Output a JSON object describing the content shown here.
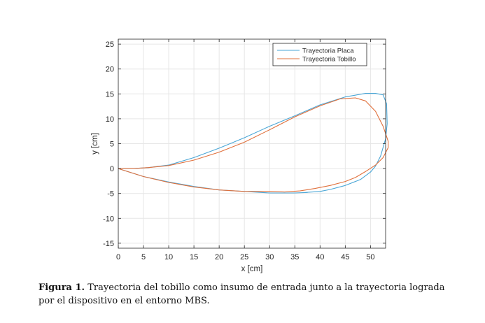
{
  "chart_data": {
    "type": "line",
    "xlabel": "x [cm]",
    "ylabel": "y [cm]",
    "xlim": [
      0,
      53
    ],
    "ylim": [
      -16,
      26
    ],
    "xticks": [
      "0",
      "5",
      "10",
      "15",
      "20",
      "25",
      "30",
      "35",
      "40",
      "45",
      "50"
    ],
    "yticks": [
      "25",
      "20",
      "15",
      "10",
      "5",
      "0",
      "-5",
      "-10",
      "-15"
    ],
    "xtick_values": [
      0,
      5,
      10,
      15,
      20,
      25,
      30,
      35,
      40,
      45,
      50
    ],
    "ytick_values": [
      25,
      20,
      15,
      10,
      5,
      0,
      -5,
      -10,
      -15
    ],
    "grid": true,
    "legend_position": "top-right",
    "series": [
      {
        "name": "Trayectoria Placa",
        "color": "#4aa6d6",
        "x": [
          0,
          3,
          6,
          10,
          15,
          20,
          25,
          30,
          35,
          40,
          45,
          49,
          51,
          52.5,
          53.2,
          53.3,
          53,
          52,
          51,
          50,
          48,
          45,
          42,
          40,
          37,
          37.5,
          35,
          30,
          25,
          20,
          15,
          10,
          5,
          0
        ],
        "y": [
          0,
          0,
          0.2,
          0.7,
          2.2,
          4.1,
          6.2,
          8.5,
          10.6,
          12.8,
          14.4,
          15.1,
          15.1,
          14.8,
          13,
          9,
          6,
          2.5,
          0.5,
          -0.7,
          -2.2,
          -3.4,
          -4.2,
          -4.6,
          -4.8,
          -4.8,
          -4.9,
          -4.9,
          -4.6,
          -4.3,
          -3.6,
          -2.7,
          -1.6,
          0
        ]
      },
      {
        "name": "Trayectoria Tobillo",
        "color": "#e0703c",
        "x": [
          0,
          3,
          6,
          10,
          15,
          20,
          25,
          30,
          35,
          40,
          44,
          47,
          49,
          51,
          52.5,
          53.5,
          53.5,
          52.5,
          51,
          49,
          47,
          45,
          42,
          39,
          36,
          33,
          30,
          25,
          20,
          15,
          10,
          5,
          0
        ],
        "y": [
          0,
          0,
          0.2,
          0.6,
          1.7,
          3.3,
          5.3,
          7.8,
          10.4,
          12.6,
          14,
          14.2,
          13.6,
          11.5,
          8.5,
          5.5,
          4.2,
          2.2,
          0.7,
          -0.6,
          -1.8,
          -2.6,
          -3.4,
          -4,
          -4.5,
          -4.7,
          -4.6,
          -4.6,
          -4.3,
          -3.7,
          -2.8,
          -1.6,
          0
        ]
      }
    ]
  },
  "caption": {
    "label": "Figura 1.",
    "text": " Trayectoria del tobillo como insumo de entrada junto a la trayectoria lograda por el dispositivo en el entorno MBS."
  }
}
